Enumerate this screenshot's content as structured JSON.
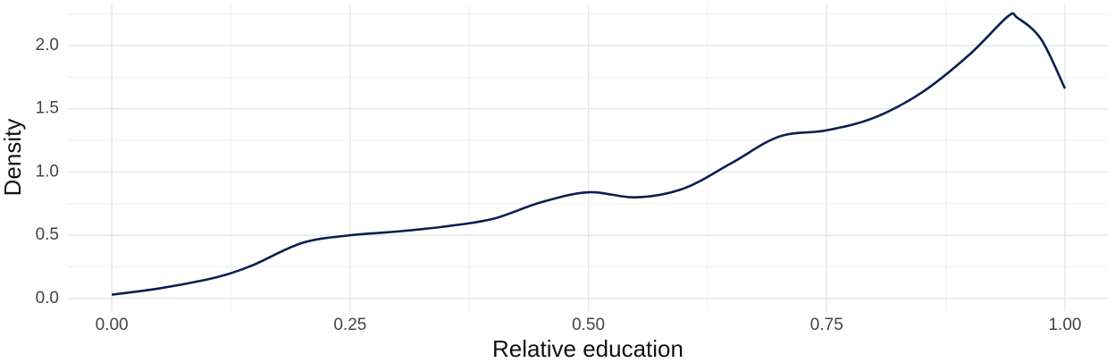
{
  "chart_data": {
    "type": "line",
    "x_label": "Relative education",
    "y_label": "Density",
    "x": [
      0,
      0.05,
      0.1,
      0.125,
      0.15,
      0.2,
      0.25,
      0.3,
      0.35,
      0.4,
      0.45,
      0.5,
      0.55,
      0.6,
      0.65,
      0.7,
      0.75,
      0.8,
      0.85,
      0.9,
      0.94,
      0.95,
      0.975,
      1.0
    ],
    "series": [
      {
        "name": "Density",
        "color": "#0b1f4f",
        "values": [
          0.03,
          0.08,
          0.15,
          0.2,
          0.27,
          0.44,
          0.5,
          0.53,
          0.57,
          0.63,
          0.76,
          0.84,
          0.8,
          0.87,
          1.07,
          1.28,
          1.33,
          1.43,
          1.63,
          1.93,
          2.23,
          2.22,
          2.05,
          1.66
        ]
      }
    ],
    "xlim": [
      -0.047,
      1.045
    ],
    "ylim": [
      -0.1,
      2.325
    ],
    "xticks": [
      {
        "value": 0,
        "label": "0.00"
      },
      0.25,
      {
        "value": 0.5,
        "label": "0.50"
      },
      0.75,
      {
        "value": 1,
        "label": "1.00"
      }
    ],
    "yticks": [
      {
        "value": 0,
        "label": "0.0"
      },
      0.5,
      {
        "value": 1,
        "label": "1.0"
      },
      1.5,
      {
        "value": 2,
        "label": "2.0"
      }
    ],
    "x_minor_grid": [
      0.125,
      0.375,
      0.625,
      0.875
    ],
    "y_minor_grid": [
      0.25,
      0.75,
      1.25,
      1.75,
      2.25
    ],
    "grid": true
  }
}
